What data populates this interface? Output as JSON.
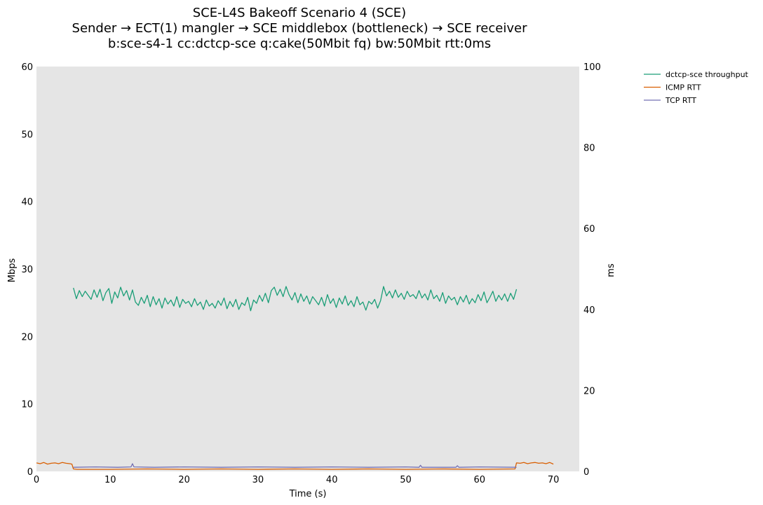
{
  "chart_data": {
    "type": "line",
    "title": [
      "SCE-L4S Bakeoff Scenario 4 (SCE)",
      "Sender → ECT(1) mangler → SCE middlebox (bottleneck) → SCE receiver",
      "b:sce-s4-1 cc:dctcp-sce q:cake(50Mbit fq) bw:50Mbit rtt:0ms"
    ],
    "xlabel": "Time (s)",
    "ylabel_left": "Mbps",
    "ylabel_right": "ms",
    "xlim": [
      0,
      73.5
    ],
    "ylim_left": [
      0,
      60
    ],
    "ylim_right": [
      0,
      100
    ],
    "x_ticks": [
      "0",
      "10",
      "20",
      "30",
      "40",
      "50",
      "60",
      "70"
    ],
    "y_ticks_left": [
      "0",
      "10",
      "20",
      "30",
      "40",
      "50",
      "60"
    ],
    "y_ticks_right": [
      "0",
      "20",
      "40",
      "60",
      "80",
      "100"
    ],
    "plot_background": "#e5e5e5",
    "grid": false,
    "legend_placement": "outside-right-top",
    "series": [
      {
        "name": "dctcp-sce throughput",
        "axis": "left",
        "color": "#1b9e77",
        "x": [
          5.0,
          5.4,
          5.8,
          6.2,
          6.6,
          7.0,
          7.4,
          7.8,
          8.2,
          8.6,
          9.0,
          9.4,
          9.8,
          10.2,
          10.6,
          11.0,
          11.4,
          11.8,
          12.2,
          12.6,
          13.0,
          13.4,
          13.8,
          14.2,
          14.6,
          15.0,
          15.4,
          15.8,
          16.2,
          16.6,
          17.0,
          17.4,
          17.8,
          18.2,
          18.6,
          19.0,
          19.4,
          19.8,
          20.2,
          20.6,
          21.0,
          21.4,
          21.8,
          22.2,
          22.6,
          23.0,
          23.4,
          23.8,
          24.2,
          24.6,
          25.0,
          25.4,
          25.8,
          26.2,
          26.6,
          27.0,
          27.4,
          27.8,
          28.2,
          28.6,
          29.0,
          29.4,
          29.8,
          30.2,
          30.6,
          31.0,
          31.4,
          31.8,
          32.2,
          32.6,
          33.0,
          33.4,
          33.8,
          34.2,
          34.6,
          35.0,
          35.4,
          35.8,
          36.2,
          36.6,
          37.0,
          37.4,
          37.8,
          38.2,
          38.6,
          39.0,
          39.4,
          39.8,
          40.2,
          40.6,
          41.0,
          41.4,
          41.8,
          42.2,
          42.6,
          43.0,
          43.4,
          43.8,
          44.2,
          44.6,
          45.0,
          45.4,
          45.8,
          46.2,
          46.6,
          47.0,
          47.4,
          47.8,
          48.2,
          48.6,
          49.0,
          49.4,
          49.8,
          50.2,
          50.6,
          51.0,
          51.4,
          51.8,
          52.2,
          52.6,
          53.0,
          53.4,
          53.8,
          54.2,
          54.6,
          55.0,
          55.4,
          55.8,
          56.2,
          56.6,
          57.0,
          57.4,
          57.8,
          58.2,
          58.6,
          59.0,
          59.4,
          59.8,
          60.2,
          60.6,
          61.0,
          61.4,
          61.8,
          62.2,
          62.6,
          63.0,
          63.4,
          63.8,
          64.2,
          64.6,
          65.0
        ],
        "values": [
          27.2,
          25.6,
          26.8,
          25.9,
          26.7,
          26.1,
          25.5,
          26.9,
          25.8,
          27.0,
          25.3,
          26.5,
          27.1,
          24.9,
          26.6,
          25.7,
          27.3,
          26.0,
          26.8,
          25.4,
          26.9,
          25.1,
          24.6,
          25.8,
          24.9,
          26.1,
          24.4,
          25.9,
          24.7,
          25.6,
          24.2,
          25.7,
          24.8,
          25.4,
          24.5,
          25.9,
          24.3,
          25.5,
          24.9,
          25.2,
          24.4,
          25.6,
          24.6,
          25.1,
          24.0,
          25.4,
          24.5,
          24.9,
          24.2,
          25.3,
          24.6,
          25.7,
          24.1,
          25.2,
          24.4,
          25.5,
          24.0,
          25.0,
          24.6,
          25.8,
          23.8,
          25.4,
          24.9,
          26.1,
          25.2,
          26.4,
          25.0,
          26.8,
          27.3,
          26.1,
          27.0,
          25.9,
          27.4,
          26.2,
          25.4,
          26.5,
          25.0,
          26.3,
          25.2,
          26.0,
          24.8,
          25.9,
          25.3,
          24.7,
          25.8,
          24.5,
          26.2,
          24.9,
          25.6,
          24.3,
          25.7,
          24.8,
          26.0,
          24.6,
          25.3,
          24.4,
          25.9,
          24.7,
          25.1,
          23.9,
          25.2,
          24.8,
          25.5,
          24.2,
          25.3,
          27.4,
          26.0,
          26.7,
          25.7,
          26.9,
          25.8,
          26.4,
          25.5,
          26.7,
          25.9,
          26.2,
          25.6,
          26.8,
          25.7,
          26.3,
          25.4,
          26.9,
          25.6,
          26.1,
          25.2,
          26.5,
          24.9,
          26.0,
          25.4,
          25.8,
          24.7,
          25.9,
          25.1,
          26.1,
          24.8,
          25.6,
          25.0,
          26.2,
          25.3,
          26.6,
          25.0,
          25.8,
          26.7,
          25.2,
          26.1,
          25.4,
          26.3,
          25.2,
          26.4,
          25.5,
          27.0
        ]
      },
      {
        "name": "ICMP RTT",
        "axis": "right",
        "color": "#d95f02",
        "x": [
          0.0,
          0.5,
          1.0,
          1.5,
          2.0,
          2.5,
          3.0,
          3.5,
          4.0,
          4.5,
          4.8,
          5.0,
          5.5,
          10,
          15,
          20,
          25,
          30,
          35,
          40,
          45,
          50,
          55,
          60,
          64.8,
          65.0,
          65.5,
          66.0,
          66.5,
          67.0,
          67.5,
          68.0,
          68.5,
          69.0,
          69.5,
          70.0
        ],
        "values": [
          2.1,
          1.9,
          2.2,
          1.8,
          2.0,
          2.1,
          1.9,
          2.2,
          2.0,
          1.9,
          1.8,
          0.6,
          0.5,
          0.5,
          0.6,
          0.5,
          0.6,
          0.5,
          0.6,
          0.5,
          0.6,
          0.5,
          0.6,
          0.5,
          0.6,
          2.1,
          2.0,
          2.2,
          1.9,
          2.1,
          2.2,
          2.0,
          2.1,
          1.9,
          2.2,
          1.8
        ]
      },
      {
        "name": "TCP RTT",
        "axis": "right",
        "color": "#7570b3",
        "x": [
          5.0,
          8.0,
          11.0,
          12.8,
          13.0,
          13.2,
          16.0,
          20.0,
          25.0,
          30.0,
          35.0,
          40.0,
          45.0,
          50.0,
          51.8,
          52.0,
          52.2,
          56.8,
          57.0,
          57.2,
          60.0,
          65.0
        ],
        "values": [
          1.0,
          1.1,
          1.0,
          1.1,
          1.9,
          1.1,
          1.0,
          1.1,
          1.0,
          1.1,
          1.0,
          1.1,
          1.0,
          1.1,
          1.0,
          1.5,
          1.0,
          1.0,
          1.4,
          1.0,
          1.1,
          1.0
        ]
      }
    ]
  }
}
